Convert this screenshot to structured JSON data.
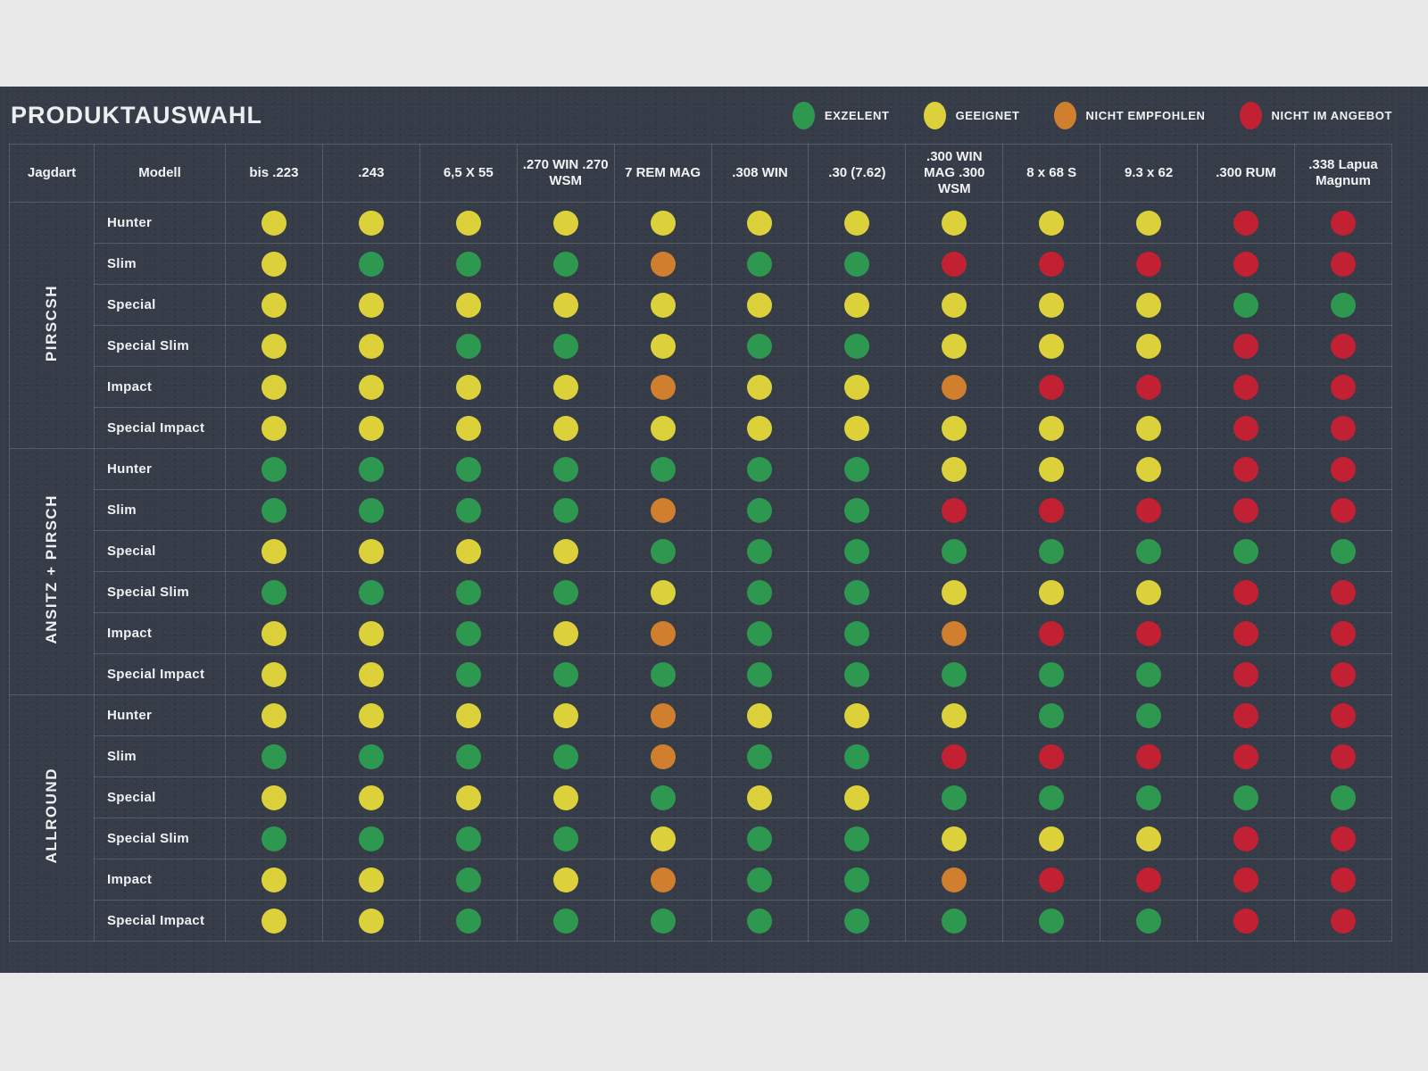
{
  "title": "PRODUKTAUSWAHL",
  "legend": [
    {
      "key": "G",
      "label": "EXZELENT",
      "color": "#2e9750",
      "icon": "green-dot"
    },
    {
      "key": "Y",
      "label": "GEEIGNET",
      "color": "#dcd13a",
      "icon": "yellow-dot"
    },
    {
      "key": "O",
      "label": "NICHT EMPFOHLEN",
      "color": "#d07f2e",
      "icon": "orange-dot"
    },
    {
      "key": "R",
      "label": "NICHT IM ANGEBOT",
      "color": "#c22134",
      "icon": "red-dot"
    }
  ],
  "chart_data": {
    "type": "heatmap",
    "title": "PRODUKTAUSWAHL",
    "legend_position": "top-right",
    "grid": true,
    "rating_scale": {
      "G": "EXZELENT",
      "Y": "GEEIGNET",
      "O": "NICHT EMPFOHLEN",
      "R": "NICHT IM ANGEBOT"
    },
    "row_header_labels": [
      "Jagdart",
      "Modell"
    ],
    "columns": [
      "bis .223",
      ".243",
      "6,5 X 55",
      ".270 WIN .270 WSM",
      "7 REM MAG",
      ".308 WIN",
      ".30 (7.62)",
      ".300 WIN MAG .300 WSM",
      "8 x 68 S",
      "9.3 x 62",
      ".300 RUM",
      ".338 Lapua Magnum"
    ],
    "groups": [
      {
        "jagdart": "PIRSCSH",
        "rows": [
          {
            "modell": "Hunter",
            "ratings": [
              "Y",
              "Y",
              "Y",
              "Y",
              "Y",
              "Y",
              "Y",
              "Y",
              "Y",
              "Y",
              "R",
              "R"
            ]
          },
          {
            "modell": "Slim",
            "ratings": [
              "Y",
              "G",
              "G",
              "G",
              "O",
              "G",
              "G",
              "R",
              "R",
              "R",
              "R",
              "R"
            ]
          },
          {
            "modell": "Special",
            "ratings": [
              "Y",
              "Y",
              "Y",
              "Y",
              "Y",
              "Y",
              "Y",
              "Y",
              "Y",
              "Y",
              "G",
              "G"
            ]
          },
          {
            "modell": "Special Slim",
            "ratings": [
              "Y",
              "Y",
              "G",
              "G",
              "Y",
              "G",
              "G",
              "Y",
              "Y",
              "Y",
              "R",
              "R"
            ]
          },
          {
            "modell": "Impact",
            "ratings": [
              "Y",
              "Y",
              "Y",
              "Y",
              "O",
              "Y",
              "Y",
              "O",
              "R",
              "R",
              "R",
              "R"
            ]
          },
          {
            "modell": "Special Impact",
            "ratings": [
              "Y",
              "Y",
              "Y",
              "Y",
              "Y",
              "Y",
              "Y",
              "Y",
              "Y",
              "Y",
              "R",
              "R"
            ]
          }
        ]
      },
      {
        "jagdart": "ANSITZ + PIRSCH",
        "rows": [
          {
            "modell": "Hunter",
            "ratings": [
              "G",
              "G",
              "G",
              "G",
              "G",
              "G",
              "G",
              "Y",
              "Y",
              "Y",
              "R",
              "R"
            ]
          },
          {
            "modell": "Slim",
            "ratings": [
              "G",
              "G",
              "G",
              "G",
              "O",
              "G",
              "G",
              "R",
              "R",
              "R",
              "R",
              "R"
            ]
          },
          {
            "modell": "Special",
            "ratings": [
              "Y",
              "Y",
              "Y",
              "Y",
              "G",
              "G",
              "G",
              "G",
              "G",
              "G",
              "G",
              "G"
            ]
          },
          {
            "modell": "Special Slim",
            "ratings": [
              "G",
              "G",
              "G",
              "G",
              "Y",
              "G",
              "G",
              "Y",
              "Y",
              "Y",
              "R",
              "R"
            ]
          },
          {
            "modell": "Impact",
            "ratings": [
              "Y",
              "Y",
              "G",
              "Y",
              "O",
              "G",
              "G",
              "O",
              "R",
              "R",
              "R",
              "R"
            ]
          },
          {
            "modell": "Special Impact",
            "ratings": [
              "Y",
              "Y",
              "G",
              "G",
              "G",
              "G",
              "G",
              "G",
              "G",
              "G",
              "R",
              "R"
            ]
          }
        ]
      },
      {
        "jagdart": "ALLROUND",
        "rows": [
          {
            "modell": "Hunter",
            "ratings": [
              "Y",
              "Y",
              "Y",
              "Y",
              "O",
              "Y",
              "Y",
              "Y",
              "G",
              "G",
              "R",
              "R"
            ]
          },
          {
            "modell": "Slim",
            "ratings": [
              "G",
              "G",
              "G",
              "G",
              "O",
              "G",
              "G",
              "R",
              "R",
              "R",
              "R",
              "R"
            ]
          },
          {
            "modell": "Special",
            "ratings": [
              "Y",
              "Y",
              "Y",
              "Y",
              "G",
              "Y",
              "Y",
              "G",
              "G",
              "G",
              "G",
              "G"
            ]
          },
          {
            "modell": "Special Slim",
            "ratings": [
              "G",
              "G",
              "G",
              "G",
              "Y",
              "G",
              "G",
              "Y",
              "Y",
              "Y",
              "R",
              "R"
            ]
          },
          {
            "modell": "Impact",
            "ratings": [
              "Y",
              "Y",
              "G",
              "Y",
              "O",
              "G",
              "G",
              "O",
              "R",
              "R",
              "R",
              "R"
            ]
          },
          {
            "modell": "Special Impact",
            "ratings": [
              "Y",
              "Y",
              "G",
              "G",
              "G",
              "G",
              "G",
              "G",
              "G",
              "G",
              "R",
              "R"
            ]
          }
        ]
      }
    ]
  },
  "colors": {
    "page_background": "#e8e8e8",
    "panel_background": "#363c48",
    "grid_line": "rgba(195,205,215,0.22)",
    "text": "#f0f1f3"
  }
}
